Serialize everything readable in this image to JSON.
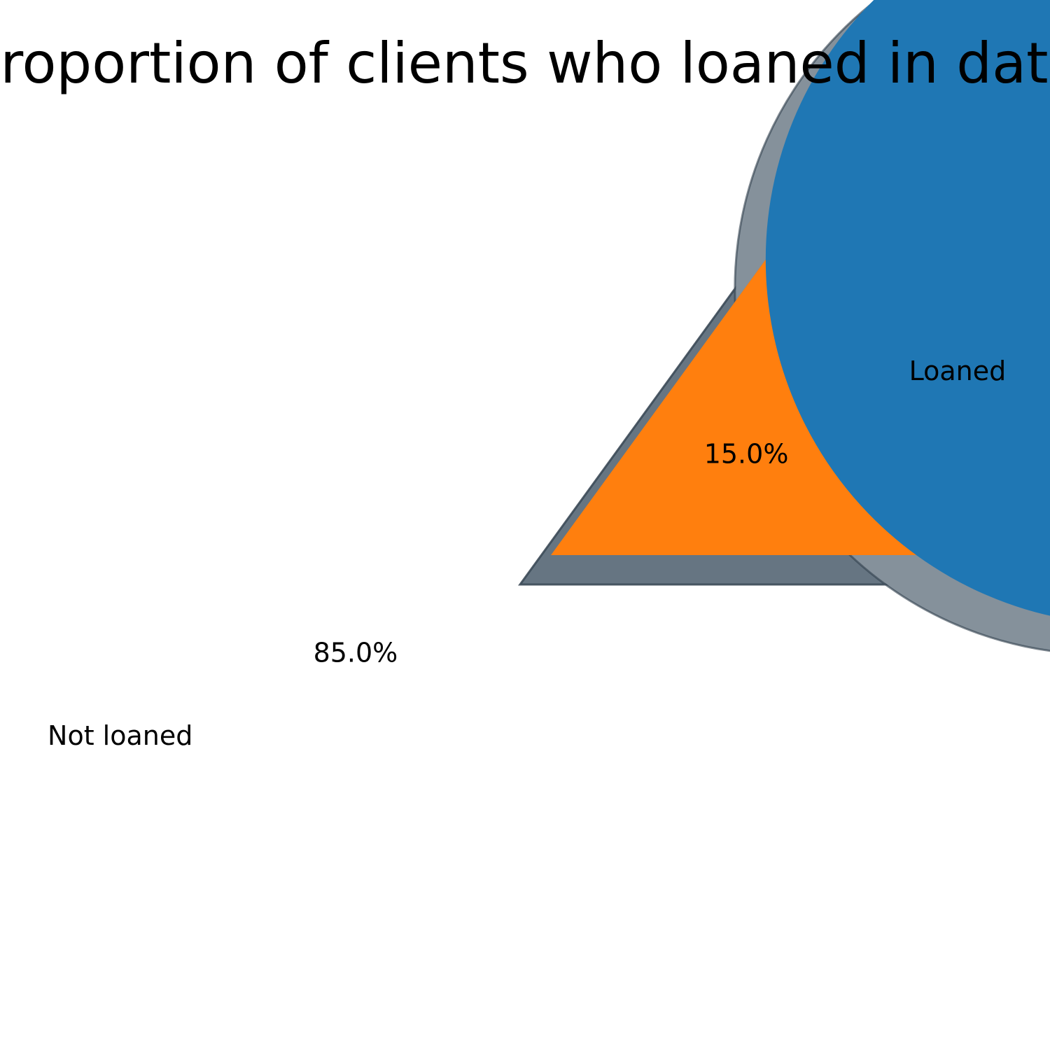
{
  "chart_data": {
    "type": "pie",
    "title": "Proportion of clients who loaned in data",
    "slices": [
      {
        "label": "Not loaned",
        "value": 85.0,
        "pct_label": "85.0%",
        "color": "#1f77b4"
      },
      {
        "label": "Loaned",
        "value": 15.0,
        "pct_label": "15.0%",
        "color": "#ff7f0e"
      }
    ],
    "start_angle": 0,
    "direction": "counterclockwise",
    "shadow": true,
    "shadow_color": "#5c6c7a",
    "legend": "none"
  }
}
